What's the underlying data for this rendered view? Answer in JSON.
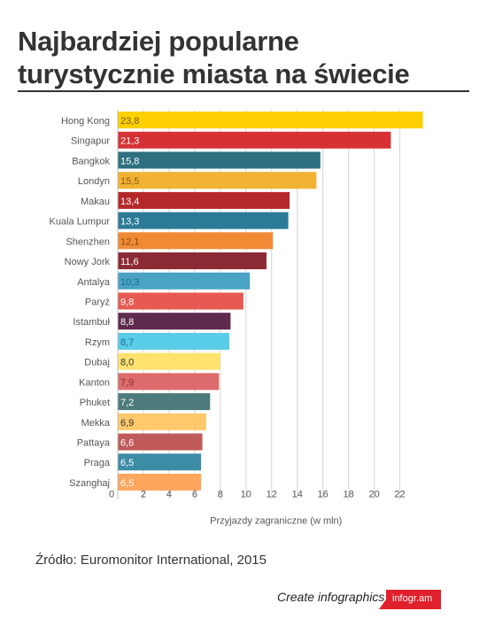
{
  "title_line1": "Najbardziej popularne",
  "title_line2": "turystycznie miasta na świecie",
  "source": "Źródło: Euromonitor International, 2015",
  "footer": {
    "create_label": "Create infographics",
    "brand": "infogr.am",
    "brand_color": "#e0202a"
  },
  "chart_data": {
    "type": "bar",
    "orientation": "horizontal",
    "categories": [
      "Hong Kong",
      "Singapur",
      "Bangkok",
      "Londyn",
      "Makau",
      "Kuala Lumpur",
      "Shenzhen",
      "Nowy Jork",
      "Antalya",
      "Paryż",
      "Istambuł",
      "Rzym",
      "Dubaj",
      "Kanton",
      "Phuket",
      "Mekka",
      "Pattaya",
      "Praga",
      "Szanghaj"
    ],
    "values": [
      23.8,
      21.3,
      15.8,
      15.5,
      13.4,
      13.3,
      12.1,
      11.6,
      10.3,
      9.8,
      8.8,
      8.7,
      8.0,
      7.9,
      7.2,
      6.9,
      6.6,
      6.5,
      6.5
    ],
    "labels": [
      "23,8",
      "21,3",
      "15,8",
      "15,5",
      "13,4",
      "13,3",
      "12,1",
      "11,6",
      "10,3",
      "9,8",
      "8,8",
      "8,7",
      "8,0",
      "7,9",
      "7,2",
      "6,9",
      "6,6",
      "6,5",
      "6,5"
    ],
    "colors": [
      "#ffd100",
      "#d63134",
      "#2e6f80",
      "#f2b233",
      "#b5292a",
      "#2b7a96",
      "#f08a35",
      "#8c2a33",
      "#4aa3c5",
      "#e65a52",
      "#5e2b4f",
      "#58cce8",
      "#ffe26e",
      "#dd6b6b",
      "#4d7a7a",
      "#ffc96b",
      "#c05a5a",
      "#3d8ca6",
      "#ffa65e"
    ],
    "label_colors": [
      "#7a5a00",
      "#ffffff",
      "#ffffff",
      "#8a5a10",
      "#ffffff",
      "#ffffff",
      "#8a4a10",
      "#ffffff",
      "#1e6b88",
      "#ffffff",
      "#ffffff",
      "#1e6b88",
      "#333333",
      "#8a3030",
      "#ffffff",
      "#333333",
      "#ffffff",
      "#ffffff",
      "#ffffff"
    ],
    "xticks": [
      "0",
      "2",
      "4",
      "6",
      "8",
      "10",
      "12",
      "14",
      "16",
      "18",
      "20",
      "22"
    ],
    "xlabel": "Przyjazdy zagraniczne (w mln)",
    "xlim": [
      0,
      24
    ],
    "grid": true
  }
}
